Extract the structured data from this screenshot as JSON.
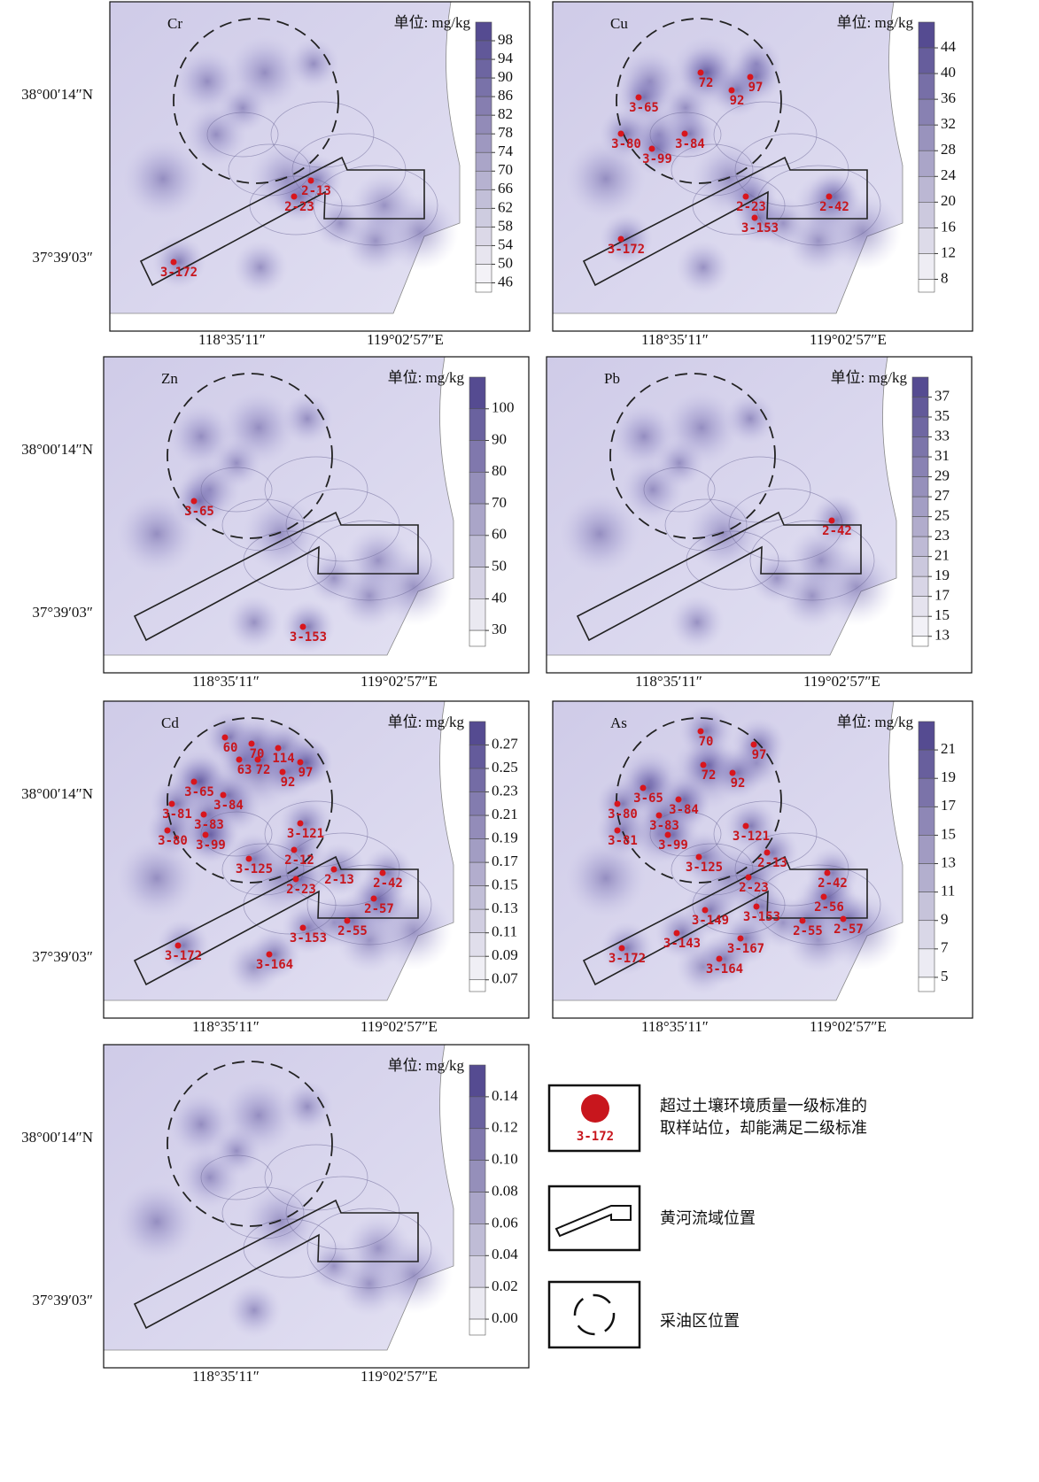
{
  "panels": [
    {
      "element": "Cr",
      "unit": "单位: mg/kg",
      "ticks": [
        "98",
        "94",
        "90",
        "86",
        "82",
        "78",
        "74",
        "70",
        "66",
        "62",
        "58",
        "54",
        "50",
        "46"
      ],
      "stations": [
        "2-13",
        "2-23",
        "3-172"
      ],
      "lat_labels": [
        "38°00′14″N",
        "37°39′03″"
      ],
      "lon_labels": [
        "118°35′11″",
        "119°02′57″E"
      ]
    },
    {
      "element": "Cu",
      "unit": "单位: mg/kg",
      "ticks": [
        "44",
        "40",
        "36",
        "32",
        "28",
        "24",
        "20",
        "16",
        "12",
        "8"
      ],
      "stations": [
        "72",
        "97",
        "92",
        "3-65",
        "3-80",
        "3-84",
        "3-99",
        "2-23",
        "2-42",
        "3-153",
        "3-172"
      ],
      "lon_labels": [
        "118°35′11″",
        "119°02′57″E"
      ]
    },
    {
      "element": "Zn",
      "unit": "单位: mg/kg",
      "ticks": [
        "100",
        "90",
        "80",
        "70",
        "60",
        "50",
        "40",
        "30"
      ],
      "stations": [
        "3-65",
        "3-153"
      ],
      "lat_labels": [
        "38°00′14″N",
        "37°39′03″"
      ],
      "lon_labels": [
        "118°35′11″",
        "119°02′57″E"
      ]
    },
    {
      "element": "Pb",
      "unit": "单位: mg/kg",
      "ticks": [
        "37",
        "35",
        "33",
        "31",
        "29",
        "27",
        "25",
        "23",
        "21",
        "19",
        "17",
        "15",
        "13"
      ],
      "stations": [
        "2-42"
      ],
      "lon_labels": [
        "118°35′11″",
        "119°02′57″E"
      ]
    },
    {
      "element": "Cd",
      "unit": "单位: mg/kg",
      "ticks": [
        "0.27",
        "0.25",
        "0.23",
        "0.21",
        "0.19",
        "0.17",
        "0.15",
        "0.13",
        "0.11",
        "0.09",
        "0.07"
      ],
      "stations": [
        "60",
        "70",
        "63",
        "72",
        "114",
        "92",
        "97",
        "3-65",
        "3-84",
        "3-81",
        "3-83",
        "3-80",
        "3-99",
        "3-121",
        "3-125",
        "2-12",
        "2-13",
        "2-23",
        "2-42",
        "2-57",
        "2-55",
        "3-153",
        "3-172",
        "3-164"
      ],
      "lat_labels": [
        "38°00′14″N",
        "37°39′03″"
      ],
      "lon_labels": [
        "118°35′11″",
        "119°02′57″E"
      ]
    },
    {
      "element": "As",
      "unit": "单位: mg/kg",
      "ticks": [
        "21",
        "19",
        "17",
        "15",
        "13",
        "11",
        "9",
        "7",
        "5"
      ],
      "stations": [
        "70",
        "97",
        "72",
        "92",
        "3-65",
        "3-84",
        "3-80",
        "3-83",
        "3-81",
        "3-99",
        "3-121",
        "3-125",
        "2-13",
        "2-23",
        "2-42",
        "2-56",
        "3-149",
        "3-153",
        "2-55",
        "2-57",
        "3-143",
        "3-167",
        "3-164",
        "3-172"
      ],
      "lon_labels": [
        "118°35′11″",
        "119°02′57″E"
      ]
    },
    {
      "unit": "单位: mg/kg",
      "ticks": [
        "0.14",
        "0.12",
        "0.10",
        "0.08",
        "0.06",
        "0.04",
        "0.02",
        "0.00"
      ],
      "stations": [],
      "lat_labels": [
        "38°00′14″N",
        "37°39′03″"
      ],
      "lon_labels": [
        "118°35′11″",
        "119°02′57″E"
      ]
    }
  ],
  "legend": [
    {
      "sample": "3-172",
      "text": [
        "超过土壤环境质量一级标准的",
        "取样站位，却能满足二级标准"
      ]
    },
    {
      "text": [
        "黄河流域位置"
      ]
    },
    {
      "text": [
        "采油区位置"
      ]
    }
  ]
}
